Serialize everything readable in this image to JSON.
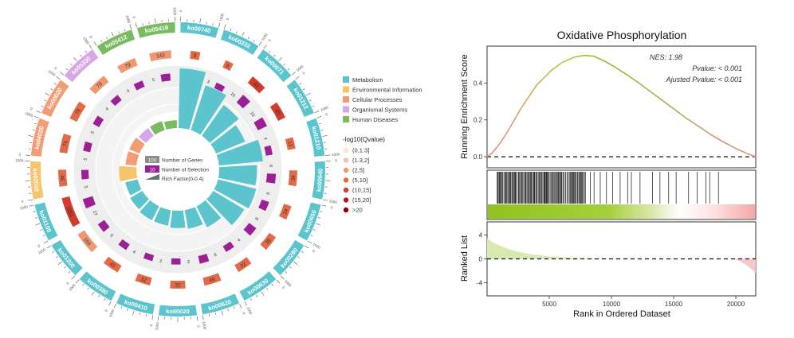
{
  "chart_data": [
    {
      "type": "circos",
      "categories": [
        {
          "label": "Metabolism",
          "color": "#5bc4cd"
        },
        {
          "label": "Environmental Information",
          "color": "#f5c46b"
        },
        {
          "label": "Cellular Processes",
          "color": "#f39d77"
        },
        {
          "label": "Organismal Systems",
          "color": "#d7a6e9"
        },
        {
          "label": "Human Diseases",
          "color": "#79bb60"
        }
      ],
      "pathways": [
        {
          "id": "ko00740",
          "category": 0,
          "genes": 8,
          "selection": 3,
          "rich": 0.38,
          "q": 3
        },
        {
          "id": "ko00232",
          "category": 0,
          "genes": 6,
          "selection": 3,
          "rich": 0.3,
          "q": 3
        },
        {
          "id": "ko00071",
          "category": 0,
          "genes": 42,
          "selection": 10,
          "rich": 0.24,
          "q": 4
        },
        {
          "id": "ko01212",
          "category": 0,
          "genes": 49,
          "selection": 10,
          "rich": 0.2,
          "q": 4
        },
        {
          "id": "ko01210",
          "category": 0,
          "genes": 13,
          "selection": 4,
          "rich": 0.28,
          "q": 3
        },
        {
          "id": "ko00640",
          "category": 0,
          "genes": 34,
          "selection": 8,
          "rich": 0.24,
          "q": 3
        },
        {
          "id": "ko00650",
          "category": 0,
          "genes": 24,
          "selection": 6,
          "rich": 0.25,
          "q": 3
        },
        {
          "id": "ko00280",
          "category": 0,
          "genes": 35,
          "selection": 8,
          "rich": 0.23,
          "q": 3
        },
        {
          "id": "ko00630",
          "category": 0,
          "genes": 32,
          "selection": 4,
          "rich": 0.15,
          "q": 3
        },
        {
          "id": "ko00620",
          "category": 0,
          "genes": 49,
          "selection": 6,
          "rich": 0.12,
          "q": 3
        },
        {
          "id": "ko00020",
          "category": 0,
          "genes": 32,
          "selection": 3,
          "rich": 0.11,
          "q": 3
        },
        {
          "id": "ko00410",
          "category": 0,
          "genes": 32,
          "selection": 3,
          "rich": 0.1,
          "q": 3
        },
        {
          "id": "ko00380",
          "category": 0,
          "genes": 45,
          "selection": 4,
          "rich": 0.1,
          "q": 3
        },
        {
          "id": "ko01200",
          "category": 0,
          "genes": 160,
          "selection": 6,
          "rich": 0.09,
          "q": 2
        },
        {
          "id": "ko01100",
          "category": 0,
          "genes": 1051,
          "selection": 27,
          "rich": 0.08,
          "q": 4
        },
        {
          "id": "ko02010",
          "category": 1,
          "genes": 46,
          "selection": 5,
          "rich": 0.11,
          "q": 3
        },
        {
          "id": "ko04020",
          "category": 2,
          "genes": 74,
          "selection": 5,
          "rich": 0.07,
          "q": 3
        },
        {
          "id": "ko00020",
          "category": 2,
          "genes": 79,
          "selection": 5,
          "rich": 0.07,
          "q": 3
        },
        {
          "id": "ko05330",
          "category": 3,
          "genes": 79,
          "selection": 4,
          "rich": 0.06,
          "q": 2
        },
        {
          "id": "ko05412",
          "category": 4,
          "genes": 79,
          "selection": 4,
          "rich": 0.06,
          "q": 2
        },
        {
          "id": "ko05418",
          "category": 4,
          "genes": 143,
          "selection": 5,
          "rich": 0.05,
          "q": 2
        }
      ],
      "legend_items": [
        "Number of Genes",
        "Number of Selection",
        "Rich Factor(0-0.4)"
      ],
      "legend_samples": [
        "100",
        "10"
      ],
      "qvalue_title": "-log10(Qvalue)",
      "qvalue_bins": [
        {
          "label": "(0,1.3]",
          "color": "#fbe3da"
        },
        {
          "label": "(1.3,2]",
          "color": "#f6c0a6"
        },
        {
          "label": "(2,5]",
          "color": "#ef9770"
        },
        {
          "label": "(5,10]",
          "color": "#e46a47"
        },
        {
          "label": "(10,15]",
          "color": "#d13c2d"
        },
        {
          "label": "(15,20]",
          "color": "#b01b1d"
        },
        {
          "label": ">20",
          "color": "#8b0000"
        }
      ],
      "selection_color": "#9c1f96",
      "rich_color": "#5bc4cd",
      "tick_labels": [
        "0",
        "1000"
      ]
    },
    {
      "type": "gsea",
      "title": "Oxidative Phosphorylation",
      "annotations": [
        "NES: 1.98",
        "Pvalue: < 0.001",
        "Ajusted Pvalue: < 0.001"
      ],
      "ylabel_top": "Running Enrichment Score",
      "ylabel_bottom": "Ranked List",
      "xlabel": "Rank in Ordered Dataset",
      "xlim": [
        1,
        21600
      ],
      "ylim_top": [
        -0.06,
        0.6
      ],
      "yticks_top": [
        0.0,
        0.2,
        0.4
      ],
      "ylim_bottom": [
        -6.2,
        6.2
      ],
      "yticks_bottom": [
        4,
        0,
        -4
      ],
      "xticks": [
        5000,
        10000,
        15000,
        20000
      ],
      "es_curve": [
        [
          1,
          0.0
        ],
        [
          400,
          0.02
        ],
        [
          900,
          0.06
        ],
        [
          1500,
          0.12
        ],
        [
          2200,
          0.2
        ],
        [
          2800,
          0.27
        ],
        [
          3400,
          0.33
        ],
        [
          4000,
          0.39
        ],
        [
          4600,
          0.43
        ],
        [
          5200,
          0.47
        ],
        [
          6000,
          0.51
        ],
        [
          7000,
          0.54
        ],
        [
          7800,
          0.55
        ],
        [
          8600,
          0.545
        ],
        [
          9400,
          0.52
        ],
        [
          10200,
          0.49
        ],
        [
          11000,
          0.455
        ],
        [
          12000,
          0.41
        ],
        [
          13000,
          0.36
        ],
        [
          14000,
          0.31
        ],
        [
          15000,
          0.26
        ],
        [
          16000,
          0.21
        ],
        [
          17000,
          0.165
        ],
        [
          18000,
          0.12
        ],
        [
          19000,
          0.08
        ],
        [
          20000,
          0.045
        ],
        [
          21000,
          0.015
        ],
        [
          21600,
          0.0
        ]
      ],
      "hit_dense_range": [
        800,
        8000
      ],
      "hit_sparse": [
        8300,
        8600,
        9100,
        9600,
        10100,
        10700,
        11300,
        11600,
        12300,
        13300,
        13900,
        14600,
        15200,
        16200,
        16900,
        17600,
        17900,
        18600
      ],
      "ranked_start": 3.4,
      "ranked_end": -2.4
    }
  ]
}
